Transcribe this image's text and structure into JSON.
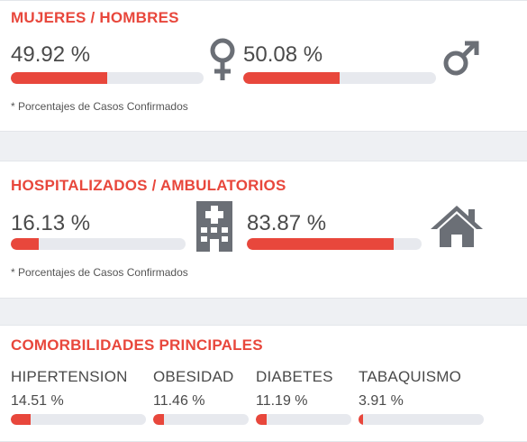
{
  "gender_card": {
    "title": "MUJERES / HOMBRES",
    "women": {
      "percent_label": "49.92 %",
      "fill": 0.4992,
      "icon": "female-icon"
    },
    "men": {
      "percent_label": "50.08 %",
      "fill": 0.5008,
      "icon": "male-icon"
    },
    "note": "* Porcentajes  de Casos Confirmados"
  },
  "hosp_card": {
    "title": "HOSPITALIZADOS / AMBULATORIOS",
    "hospitalized": {
      "percent_label": "16.13 %",
      "fill": 0.1613,
      "icon": "hospital-icon"
    },
    "ambulatory": {
      "percent_label": "83.87 %",
      "fill": 0.8387,
      "icon": "house-icon"
    },
    "note": "* Porcentajes  de Casos Confirmados"
  },
  "comorb_card": {
    "title": "COMORBILIDADES PRINCIPALES",
    "items": [
      {
        "label": "HIPERTENSION",
        "percent_label": "14.51 %",
        "fill": 0.1451
      },
      {
        "label": "OBESIDAD",
        "percent_label": "11.46 %",
        "fill": 0.1146
      },
      {
        "label": "DIABETES",
        "percent_label": "11.19 %",
        "fill": 0.1119
      },
      {
        "label": "TABAQUISMO",
        "percent_label": "3.91 %",
        "fill": 0.0391
      }
    ]
  },
  "colors": {
    "accent": "#e8473c",
    "track": "#e7e9ee",
    "text": "#4a4a4a",
    "icon": "#6b6f76"
  }
}
